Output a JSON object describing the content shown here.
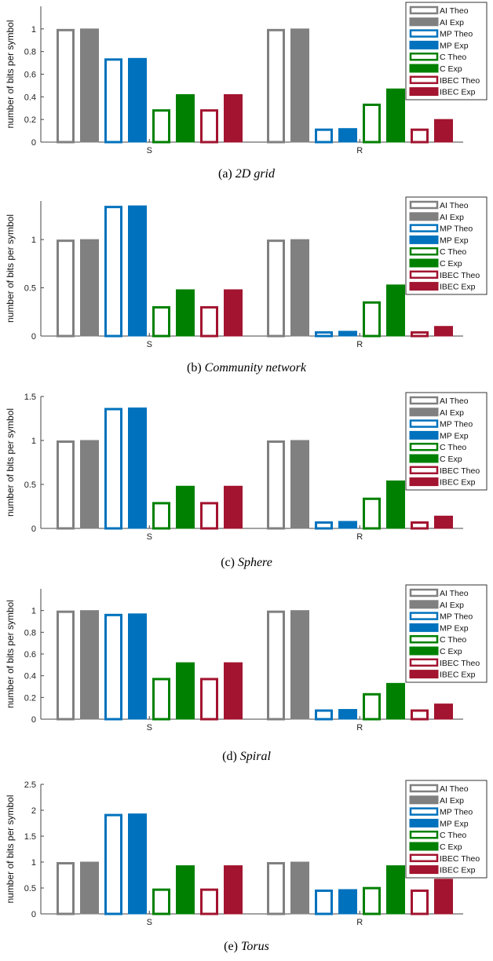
{
  "colors": {
    "AI": "#808080",
    "MP": "#0072BD",
    "C": "#008000",
    "IBEC": "#A2142F"
  },
  "legend": [
    {
      "label": "AI Theo",
      "color": "#808080",
      "filled": false
    },
    {
      "label": "AI Exp",
      "color": "#808080",
      "filled": true
    },
    {
      "label": "MP Theo",
      "color": "#0072BD",
      "filled": false
    },
    {
      "label": "MP Exp",
      "color": "#0072BD",
      "filled": true
    },
    {
      "label": "C Theo",
      "color": "#008000",
      "filled": false
    },
    {
      "label": "C Exp",
      "color": "#008000",
      "filled": true
    },
    {
      "label": "IBEC  Theo",
      "color": "#A2142F",
      "filled": false
    },
    {
      "label": "IBEC  Exp",
      "color": "#A2142F",
      "filled": true
    }
  ],
  "chart_data": [
    {
      "type": "bar",
      "caption_label": "(a)",
      "caption_text": "2D grid",
      "ylabel": "number of bits per symbol",
      "categories": [
        "S",
        "R"
      ],
      "ylim": [
        0,
        1.2
      ],
      "yticks": [
        "0",
        "0.2",
        "0.4",
        "0.6",
        "0.8",
        "1"
      ],
      "ytick_values": [
        0,
        0.2,
        0.4,
        0.6,
        0.8,
        1
      ],
      "legend_position": "top-right",
      "series": [
        {
          "name": "AI Theo",
          "values": [
            1.0,
            1.0
          ]
        },
        {
          "name": "AI Exp",
          "values": [
            1.0,
            1.0
          ]
        },
        {
          "name": "MP Theo",
          "values": [
            0.74,
            0.12
          ]
        },
        {
          "name": "MP Exp",
          "values": [
            0.74,
            0.12
          ]
        },
        {
          "name": "C Theo",
          "values": [
            0.29,
            0.34
          ]
        },
        {
          "name": "C Exp",
          "values": [
            0.42,
            0.47
          ]
        },
        {
          "name": "IBEC  Theo",
          "values": [
            0.29,
            0.12
          ]
        },
        {
          "name": "IBEC  Exp",
          "values": [
            0.42,
            0.2
          ]
        }
      ]
    },
    {
      "type": "bar",
      "caption_label": "(b)",
      "caption_text": "Community network",
      "ylabel": "number of bits per symbol",
      "categories": [
        "S",
        "R"
      ],
      "ylim": [
        0,
        1.4
      ],
      "yticks": [
        "0",
        "0.5",
        "1"
      ],
      "ytick_values": [
        0,
        0.5,
        1
      ],
      "legend_position": "top-right",
      "series": [
        {
          "name": "AI Theo",
          "values": [
            1.0,
            1.0
          ]
        },
        {
          "name": "AI Exp",
          "values": [
            1.0,
            1.0
          ]
        },
        {
          "name": "MP Theo",
          "values": [
            1.35,
            0.05
          ]
        },
        {
          "name": "MP Exp",
          "values": [
            1.35,
            0.05
          ]
        },
        {
          "name": "C Theo",
          "values": [
            0.31,
            0.36
          ]
        },
        {
          "name": "C Exp",
          "values": [
            0.48,
            0.53
          ]
        },
        {
          "name": "IBEC  Theo",
          "values": [
            0.31,
            0.05
          ]
        },
        {
          "name": "IBEC  Exp",
          "values": [
            0.48,
            0.1
          ]
        }
      ]
    },
    {
      "type": "bar",
      "caption_label": "(c)",
      "caption_text": "Sphere",
      "ylabel": "number of bits per symbol",
      "categories": [
        "S",
        "R"
      ],
      "ylim": [
        0,
        1.5
      ],
      "yticks": [
        "0",
        "0.5",
        "1",
        "1.5"
      ],
      "ytick_values": [
        0,
        0.5,
        1,
        1.5
      ],
      "legend_position": "top-right",
      "series": [
        {
          "name": "AI Theo",
          "values": [
            1.0,
            1.0
          ]
        },
        {
          "name": "AI Exp",
          "values": [
            1.0,
            1.0
          ]
        },
        {
          "name": "MP Theo",
          "values": [
            1.37,
            0.08
          ]
        },
        {
          "name": "MP Exp",
          "values": [
            1.37,
            0.08
          ]
        },
        {
          "name": "C Theo",
          "values": [
            0.3,
            0.35
          ]
        },
        {
          "name": "C Exp",
          "values": [
            0.48,
            0.54
          ]
        },
        {
          "name": "IBEC  Theo",
          "values": [
            0.3,
            0.08
          ]
        },
        {
          "name": "IBEC  Exp",
          "values": [
            0.48,
            0.14
          ]
        }
      ]
    },
    {
      "type": "bar",
      "caption_label": "(d)",
      "caption_text": "Spiral",
      "ylabel": "number of bits per symbol",
      "categories": [
        "S",
        "R"
      ],
      "ylim": [
        0,
        1.2
      ],
      "yticks": [
        "0",
        "0.2",
        "0.4",
        "0.6",
        "0.8",
        "1"
      ],
      "ytick_values": [
        0,
        0.2,
        0.4,
        0.6,
        0.8,
        1
      ],
      "legend_position": "top-right",
      "series": [
        {
          "name": "AI Theo",
          "values": [
            1.0,
            1.0
          ]
        },
        {
          "name": "AI Exp",
          "values": [
            1.0,
            1.0
          ]
        },
        {
          "name": "MP Theo",
          "values": [
            0.97,
            0.09
          ]
        },
        {
          "name": "MP Exp",
          "values": [
            0.97,
            0.09
          ]
        },
        {
          "name": "C Theo",
          "values": [
            0.38,
            0.24
          ]
        },
        {
          "name": "C Exp",
          "values": [
            0.52,
            0.33
          ]
        },
        {
          "name": "IBEC  Theo",
          "values": [
            0.38,
            0.09
          ]
        },
        {
          "name": "IBEC  Exp",
          "values": [
            0.52,
            0.14
          ]
        }
      ]
    },
    {
      "type": "bar",
      "caption_label": "(e)",
      "caption_text": "Torus",
      "ylabel": "number of bits per symbol",
      "categories": [
        "S",
        "R"
      ],
      "ylim": [
        0,
        2.5
      ],
      "yticks": [
        "0",
        "0.5",
        "1",
        "1.5",
        "2",
        "2.5"
      ],
      "ytick_values": [
        0,
        0.5,
        1,
        1.5,
        2,
        2.5
      ],
      "legend_position": "top-right",
      "series": [
        {
          "name": "AI Theo",
          "values": [
            1.0,
            1.0
          ]
        },
        {
          "name": "AI Exp",
          "values": [
            1.0,
            1.0
          ]
        },
        {
          "name": "MP Theo",
          "values": [
            1.93,
            0.47
          ]
        },
        {
          "name": "MP Exp",
          "values": [
            1.93,
            0.47
          ]
        },
        {
          "name": "C Theo",
          "values": [
            0.49,
            0.52
          ]
        },
        {
          "name": "C Exp",
          "values": [
            0.93,
            0.93
          ]
        },
        {
          "name": "IBEC  Theo",
          "values": [
            0.49,
            0.47
          ]
        },
        {
          "name": "IBEC  Exp",
          "values": [
            0.93,
            0.67
          ]
        }
      ]
    }
  ]
}
